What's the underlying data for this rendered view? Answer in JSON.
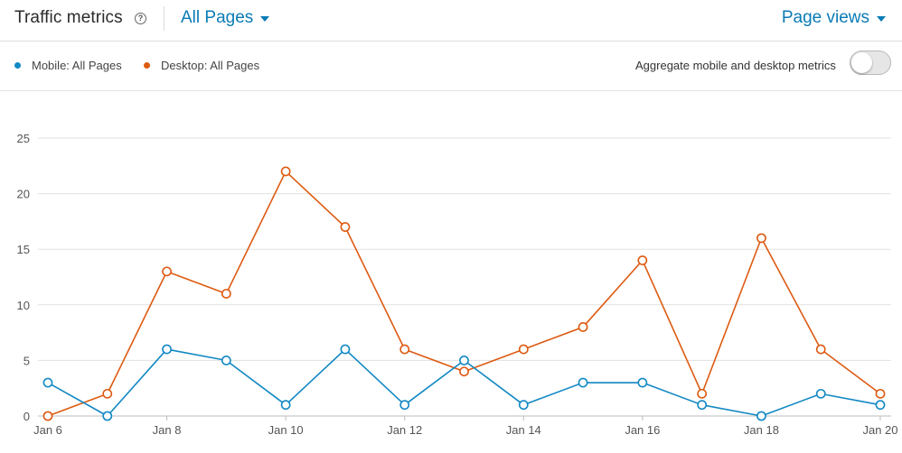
{
  "header": {
    "title": "Traffic metrics",
    "scope_dropdown": "All Pages",
    "metric_dropdown": "Page views"
  },
  "legend": {
    "series": [
      {
        "label": "Mobile: All Pages",
        "color": "#1288c3"
      },
      {
        "label": "Desktop: All Pages",
        "color": "#dd5a12"
      }
    ],
    "aggregate_label": "Aggregate mobile and desktop metrics",
    "aggregate_enabled": false
  },
  "chart_data": {
    "type": "line",
    "x": [
      "Jan 6",
      "Jan 7",
      "Jan 8",
      "Jan 9",
      "Jan 10",
      "Jan 11",
      "Jan 12",
      "Jan 13",
      "Jan 14",
      "Jan 15",
      "Jan 16",
      "Jan 17",
      "Jan 18",
      "Jan 19",
      "Jan 20"
    ],
    "x_tick_labels": [
      "Jan 6",
      "Jan 8",
      "Jan 10",
      "Jan 12",
      "Jan 14",
      "Jan 16",
      "Jan 18",
      "Jan 20"
    ],
    "series": [
      {
        "name": "Mobile: All Pages",
        "color": "#1288c3",
        "values": [
          3,
          0,
          6,
          5,
          1,
          6,
          1,
          5,
          1,
          3,
          3,
          1,
          0,
          2,
          1
        ]
      },
      {
        "name": "Desktop: All Pages",
        "color": "#dd5a12",
        "values": [
          0,
          2,
          13,
          11,
          22,
          17,
          6,
          4,
          6,
          8,
          14,
          2,
          16,
          6,
          2
        ]
      }
    ],
    "y_ticks": [
      0,
      5,
      10,
      15,
      20,
      25
    ],
    "ylim": [
      0,
      25
    ],
    "grid": true,
    "legend_position": "top-left"
  }
}
